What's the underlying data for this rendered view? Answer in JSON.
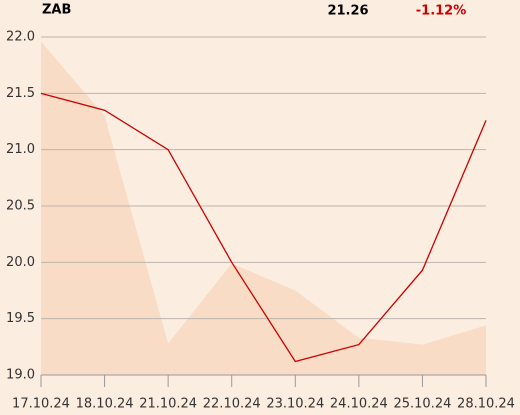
{
  "chart_data": {
    "type": "line",
    "header": {
      "symbol": "ZAB",
      "price": "21.26",
      "change": "-1.12%",
      "change_color": "#cc0000"
    },
    "categories": [
      "17.10.24",
      "18.10.24",
      "21.10.24",
      "22.10.24",
      "23.10.24",
      "24.10.24",
      "25.10.24",
      "28.10.24"
    ],
    "series": [
      {
        "style": "area",
        "color": "#f8dcc5",
        "values": [
          21.96,
          21.3,
          19.28,
          19.99,
          19.75,
          19.33,
          19.27,
          19.44
        ]
      },
      {
        "style": "line",
        "color": "#cc0000",
        "values": [
          21.5,
          21.35,
          21.0,
          20.0,
          19.12,
          19.27,
          19.93,
          21.26
        ]
      }
    ],
    "ylim": [
      19,
      22
    ],
    "yticks": [
      {
        "value": 19,
        "label": "19.0"
      },
      19.5,
      {
        "value": 20,
        "label": "20.0"
      },
      20.5,
      {
        "value": 21,
        "label": "21.0"
      },
      21.5,
      {
        "value": 22,
        "label": "22.0"
      }
    ],
    "grid": true
  }
}
